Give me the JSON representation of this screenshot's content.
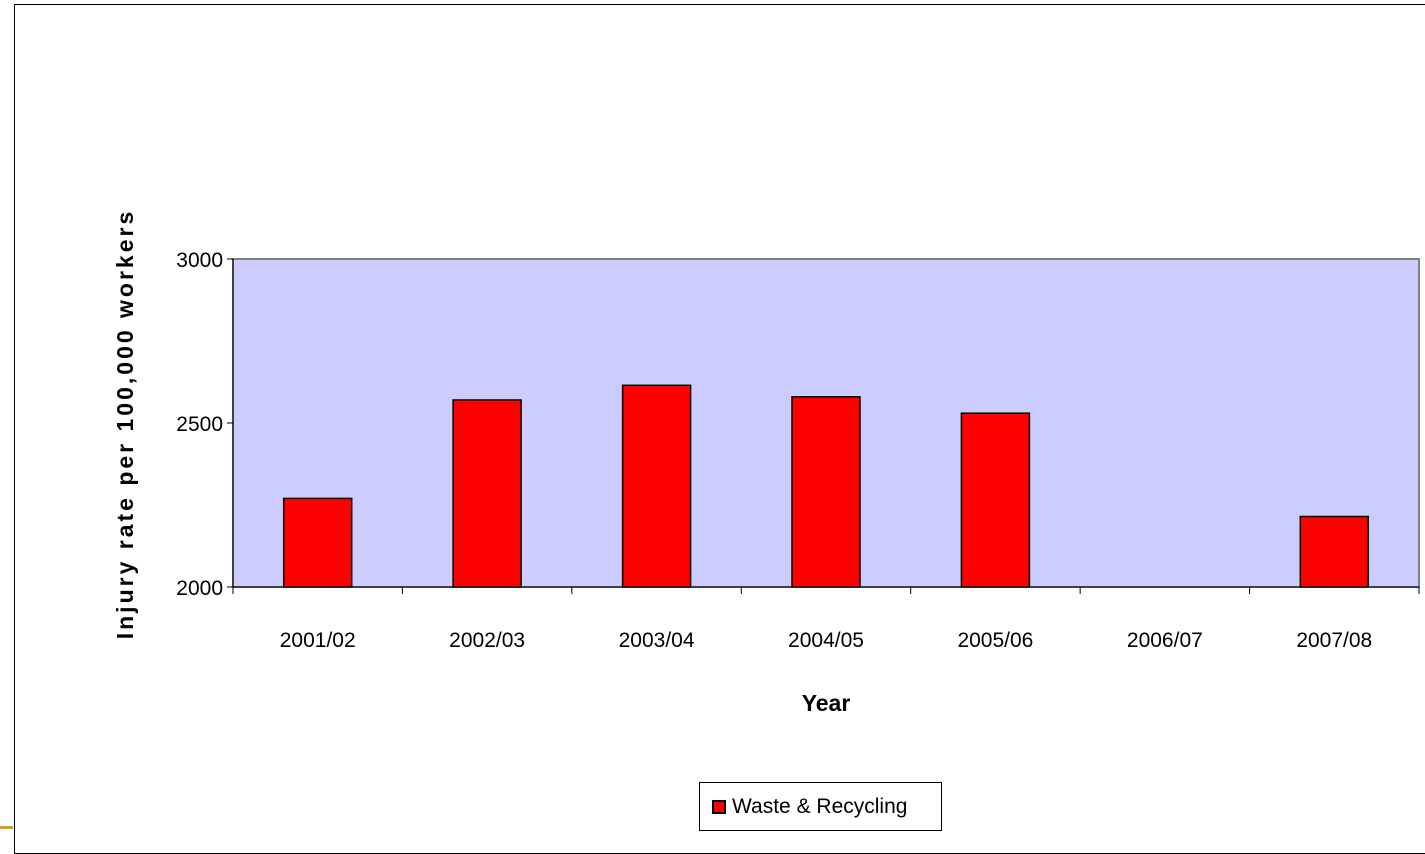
{
  "chart_data": {
    "type": "bar",
    "categories": [
      "2001/02",
      "2002/03",
      "2003/04",
      "2004/05",
      "2005/06",
      "2006/07",
      "2007/08"
    ],
    "series": [
      {
        "name": "Waste & Recycling",
        "values": [
          2270,
          2570,
          2615,
          2580,
          2530,
          null,
          2215
        ],
        "color": "#ff0000"
      }
    ],
    "title": "",
    "xlabel": "Year",
    "ylabel": "Injury rate per 100,000 workers",
    "ylim": [
      2000,
      3000
    ],
    "yticks": [
      "2000",
      "2500",
      "3000"
    ],
    "plot_background": "#ccccff",
    "grid": false,
    "legend_position": "bottom"
  }
}
